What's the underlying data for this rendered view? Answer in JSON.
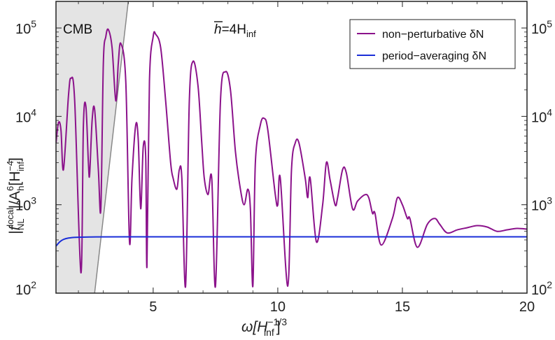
{
  "chart_data": {
    "type": "line",
    "xlim": [
      1.1,
      20
    ],
    "ylim": [
      100,
      200000
    ],
    "y_scale": "log",
    "x_ticks": [
      5,
      10,
      15,
      20
    ],
    "x_tick_labels": [
      "5",
      "10",
      "15",
      "20"
    ],
    "y_ticks": [
      100,
      1000,
      10000,
      100000
    ],
    "y_tick_labels": [
      {
        "base": "10",
        "exp": "2"
      },
      {
        "base": "10",
        "exp": "3"
      },
      {
        "base": "10",
        "exp": "4"
      },
      {
        "base": "10",
        "exp": "5"
      }
    ],
    "xlabel": {
      "main": "ω[H",
      "sub": "inf",
      "sup": "−1/3",
      "close": "]"
    },
    "ylabel": {
      "p1": "|f",
      "sup1": "local",
      "sub1": "NL",
      "p2": "|/A",
      "sup2": "6",
      "sub2": "h",
      "p3": "[H",
      "sup3": "−4",
      "sub3": "inf",
      "p4": "]"
    },
    "annotations": {
      "cmb": "CMB",
      "hbar": {
        "symbol": "h",
        "eq": "=4H",
        "sub": "inf"
      }
    },
    "cmb_region": {
      "color": "#e4e4e4",
      "boundary_x_at_ymin": 2.65,
      "boundary_x_at_ymax": 4.0
    },
    "legend": {
      "position": "top-right",
      "entries": [
        {
          "label": "non−perturbative δN",
          "color": "#8b128b"
        },
        {
          "label": "period−averaging δN",
          "color": "#1a2ed8"
        }
      ]
    },
    "series": [
      {
        "name": "non−perturbative δN",
        "color": "#8b128b",
        "anchors": [
          [
            1.1,
            5000
          ],
          [
            1.2,
            8500
          ],
          [
            1.3,
            7000
          ],
          [
            1.4,
            2500
          ],
          [
            1.6,
            17000
          ],
          [
            1.7,
            27000
          ],
          [
            1.85,
            15000
          ],
          [
            2.1,
            170
          ],
          [
            2.2,
            8000
          ],
          [
            2.3,
            13000
          ],
          [
            2.4,
            3000
          ],
          [
            2.45,
            2200
          ],
          [
            2.55,
            9000
          ],
          [
            2.65,
            12000
          ],
          [
            2.8,
            2500
          ],
          [
            2.9,
            900
          ],
          [
            3.0,
            40000
          ],
          [
            3.1,
            80000
          ],
          [
            3.2,
            96000
          ],
          [
            3.35,
            60000
          ],
          [
            3.5,
            15000
          ],
          [
            3.6,
            40000
          ],
          [
            3.7,
            67000
          ],
          [
            3.9,
            25000
          ],
          [
            4.05,
            380
          ],
          [
            4.15,
            2000
          ],
          [
            4.3,
            8000
          ],
          [
            4.4,
            5500
          ],
          [
            4.5,
            900
          ],
          [
            4.6,
            4500
          ],
          [
            4.7,
            3500
          ],
          [
            4.75,
            200
          ],
          [
            4.85,
            25000
          ],
          [
            5.0,
            80000
          ],
          [
            5.1,
            85000
          ],
          [
            5.3,
            60000
          ],
          [
            5.5,
            15000
          ],
          [
            5.7,
            3000
          ],
          [
            5.8,
            2000
          ],
          [
            5.95,
            1500
          ],
          [
            6.05,
            2500
          ],
          [
            6.15,
            2000
          ],
          [
            6.3,
            120
          ],
          [
            6.45,
            15000
          ],
          [
            6.6,
            42000
          ],
          [
            6.8,
            22000
          ],
          [
            6.95,
            5000
          ],
          [
            7.05,
            2000
          ],
          [
            7.2,
            1300
          ],
          [
            7.35,
            2000
          ],
          [
            7.5,
            120
          ],
          [
            7.7,
            15000
          ],
          [
            7.9,
            32000
          ],
          [
            8.1,
            20000
          ],
          [
            8.3,
            4000
          ],
          [
            8.5,
            1500
          ],
          [
            8.65,
            1000
          ],
          [
            8.8,
            1500
          ],
          [
            8.9,
            900
          ],
          [
            9.0,
            120
          ],
          [
            9.1,
            3000
          ],
          [
            9.3,
            8000
          ],
          [
            9.45,
            9500
          ],
          [
            9.6,
            7000
          ],
          [
            9.9,
            1300
          ],
          [
            10.0,
            1000
          ],
          [
            10.1,
            2000
          ],
          [
            10.4,
            120
          ],
          [
            10.55,
            2500
          ],
          [
            10.7,
            5000
          ],
          [
            10.85,
            5000
          ],
          [
            11.1,
            2000
          ],
          [
            11.2,
            1200
          ],
          [
            11.3,
            2000
          ],
          [
            11.55,
            380
          ],
          [
            11.8,
            1000
          ],
          [
            11.95,
            3000
          ],
          [
            12.1,
            1900
          ],
          [
            12.3,
            1000
          ],
          [
            12.4,
            1200
          ],
          [
            12.6,
            2500
          ],
          [
            12.75,
            2300
          ],
          [
            13.0,
            900
          ],
          [
            13.2,
            1100
          ],
          [
            13.5,
            1300
          ],
          [
            13.65,
            1200
          ],
          [
            13.8,
            800
          ],
          [
            13.9,
            800
          ],
          [
            14.15,
            350
          ],
          [
            14.6,
            700
          ],
          [
            14.8,
            1200
          ],
          [
            15.0,
            1000
          ],
          [
            15.2,
            700
          ],
          [
            15.3,
            700
          ],
          [
            15.6,
            330
          ],
          [
            16.0,
            600
          ],
          [
            16.3,
            700
          ],
          [
            16.5,
            600
          ],
          [
            16.8,
            480
          ],
          [
            17.2,
            520
          ],
          [
            17.6,
            550
          ],
          [
            18.0,
            580
          ],
          [
            18.4,
            560
          ],
          [
            18.8,
            500
          ],
          [
            19.2,
            520
          ],
          [
            19.6,
            540
          ],
          [
            20.0,
            530
          ]
        ]
      },
      {
        "name": "period−averaging δN",
        "color": "#1a2ed8",
        "anchors": [
          [
            1.1,
            340
          ],
          [
            1.25,
            380
          ],
          [
            1.4,
            405
          ],
          [
            1.6,
            420
          ],
          [
            1.9,
            428
          ],
          [
            2.5,
            432
          ],
          [
            4.0,
            434
          ],
          [
            10.0,
            434
          ],
          [
            20.0,
            434
          ]
        ]
      }
    ]
  }
}
